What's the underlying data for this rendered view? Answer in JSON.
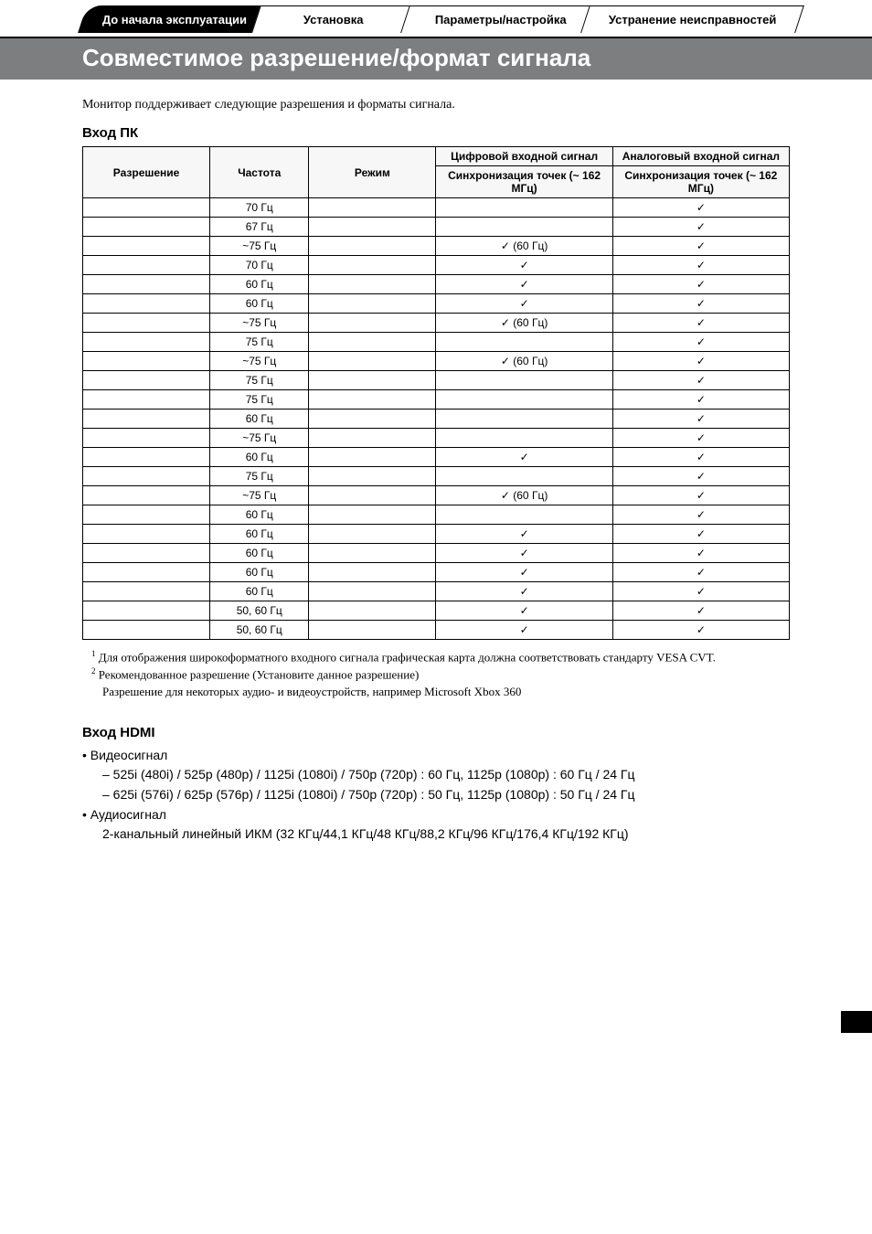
{
  "tabs": [
    "До начала эксплуатации",
    "Установка",
    "Параметры/настройка",
    "Устранение неисправностей"
  ],
  "title": "Совместимое разрешение/формат сигнала",
  "intro": "Монитор поддерживает следующие разрешения и форматы сигнала.",
  "section_pc": "Вход ПК",
  "table": {
    "header_row1": {
      "resolution": "Разрешение",
      "frequency": "Частота",
      "mode": "Режим",
      "digital": "Цифровой входной сигнал",
      "analog": "Аналоговый входной сигнал"
    },
    "header_row2": {
      "sync_digital": "Синхронизация точек (~ 162 МГц)",
      "sync_analog": "Синхронизация точек (~ 162 МГц)"
    },
    "rows": [
      {
        "freq": "70 Гц",
        "mode": "",
        "dig": "",
        "ana": "✓"
      },
      {
        "freq": "67 Гц",
        "mode": "",
        "dig": "",
        "ana": "✓"
      },
      {
        "freq": "~75 Гц",
        "mode": "",
        "dig": "✓ (60 Гц)",
        "ana": "✓"
      },
      {
        "freq": "70 Гц",
        "mode": "",
        "dig": "✓",
        "ana": "✓"
      },
      {
        "freq": "60 Гц",
        "mode": "",
        "dig": "✓",
        "ana": "✓"
      },
      {
        "freq": "60 Гц",
        "mode": "",
        "dig": "✓",
        "ana": "✓"
      },
      {
        "freq": "~75 Гц",
        "mode": "",
        "dig": "✓ (60 Гц)",
        "ana": "✓"
      },
      {
        "freq": "75 Гц",
        "mode": "",
        "dig": "",
        "ana": "✓"
      },
      {
        "freq": "~75 Гц",
        "mode": "",
        "dig": "✓ (60 Гц)",
        "ana": "✓"
      },
      {
        "freq": "75 Гц",
        "mode": "",
        "dig": "",
        "ana": "✓"
      },
      {
        "freq": "75 Гц",
        "mode": "",
        "dig": "",
        "ana": "✓"
      },
      {
        "freq": "60 Гц",
        "mode": "",
        "dig": "",
        "ana": "✓"
      },
      {
        "freq": "~75 Гц",
        "mode": "",
        "dig": "",
        "ana": "✓"
      },
      {
        "freq": "60 Гц",
        "mode": "",
        "dig": "✓",
        "ana": "✓"
      },
      {
        "freq": "75 Гц",
        "mode": "",
        "dig": "",
        "ana": "✓"
      },
      {
        "freq": "~75 Гц",
        "mode": "",
        "dig": "✓ (60 Гц)",
        "ana": "✓"
      },
      {
        "freq": "60 Гц",
        "mode": "",
        "dig": "",
        "ana": "✓"
      },
      {
        "freq": "60 Гц",
        "mode": "",
        "dig": "✓",
        "ana": "✓"
      },
      {
        "freq": "60 Гц",
        "mode": "",
        "dig": "✓",
        "ana": "✓"
      },
      {
        "freq": "60 Гц",
        "mode": "",
        "dig": "✓",
        "ana": "✓"
      },
      {
        "freq": "60 Гц",
        "mode": "",
        "dig": "✓",
        "ana": "✓"
      },
      {
        "freq": "50, 60 Гц",
        "mode": "",
        "dig": "✓",
        "ana": "✓"
      },
      {
        "freq": "50, 60 Гц",
        "mode": "",
        "dig": "✓",
        "ana": "✓"
      }
    ],
    "col_widths": [
      "18%",
      "14%",
      "18%",
      "25%",
      "25%"
    ]
  },
  "footnotes": {
    "f1": "Для отображения широкоформатного входного сигнала графическая карта должна соответствовать стандарту VESA CVT.",
    "f2": "Рекомендованное разрешение (Установите данное разрешение)",
    "f2b": "Разрешение для некоторых аудио- и видеоустройств, например Microsoft Xbox 360"
  },
  "section_hdmi": "Вход HDMI",
  "hdmi": {
    "video_label": "• Видеосигнал",
    "video_lines": [
      "– 525i (480i) / 525p (480p) / 1125i (1080i) / 750p (720p) : 60 Гц, 1125p (1080p) : 60 Гц / 24 Гц",
      "– 625i (576i) / 625p (576p) / 1125i (1080i) / 750p (720p) : 50 Гц, 1125p (1080p) : 50 Гц / 24 Гц"
    ],
    "audio_label": "• Аудиосигнал",
    "audio_line": "2-канальный линейный ИКМ (32 КГц/44,1 КГц/48 КГц/88,2 КГц/96 КГц/176,4 КГц/192 КГц)"
  },
  "colors": {
    "title_bg": "#7d7e80",
    "title_fg": "#ffffff",
    "tab_active_bg": "#000000",
    "tab_active_fg": "#ffffff",
    "border": "#000000",
    "body_bg": "#ffffff"
  }
}
